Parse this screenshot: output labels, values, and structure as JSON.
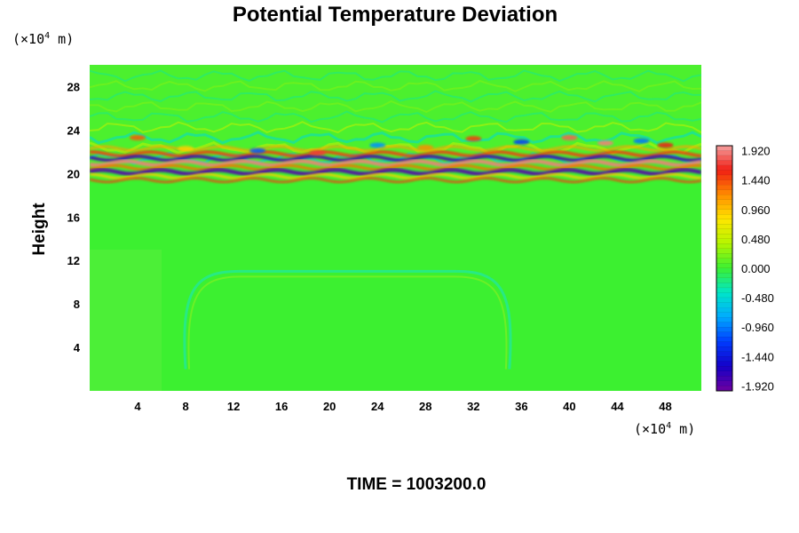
{
  "chart_data": {
    "type": "heatmap",
    "title": "Potential Temperature Deviation",
    "ylabel": "Height",
    "x_unit_prefix": "(×10",
    "x_unit_exp": "4",
    "x_unit_suffix": " m)",
    "y_unit_prefix": "(×10",
    "y_unit_exp": "4",
    "y_unit_suffix": " m)",
    "xlim": [
      0,
      51
    ],
    "ylim": [
      0,
      30
    ],
    "x_ticks": [
      "4",
      "8",
      "12",
      "16",
      "20",
      "24",
      "28",
      "32",
      "36",
      "40",
      "44",
      "48"
    ],
    "x_tick_values": [
      4,
      8,
      12,
      16,
      20,
      24,
      28,
      32,
      36,
      40,
      44,
      48
    ],
    "y_ticks": [
      "4",
      "8",
      "12",
      "16",
      "20",
      "24",
      "28"
    ],
    "y_tick_values": [
      4,
      8,
      12,
      16,
      20,
      24,
      28
    ],
    "colorbar": {
      "min": -2.0,
      "max": 2.0,
      "step": 0.08,
      "tick_labels": [
        "1.920",
        "1.440",
        "0.960",
        "0.480",
        "0.000",
        "-0.480",
        "-0.960",
        "-1.440",
        "-1.920"
      ],
      "tick_values": [
        1.92,
        1.44,
        0.96,
        0.48,
        0.0,
        -0.48,
        -0.96,
        -1.44,
        -1.92
      ]
    },
    "features": {
      "background_value": 0.0,
      "tropopause_band_height": 20.5,
      "tropopause_band_extent": [
        0,
        51
      ],
      "wave_region_height": [
        21,
        30
      ],
      "dome_left_x": 8,
      "dome_right_x": 35,
      "dome_top_height": 11
    },
    "footer": "TIME = 1003200.0"
  }
}
